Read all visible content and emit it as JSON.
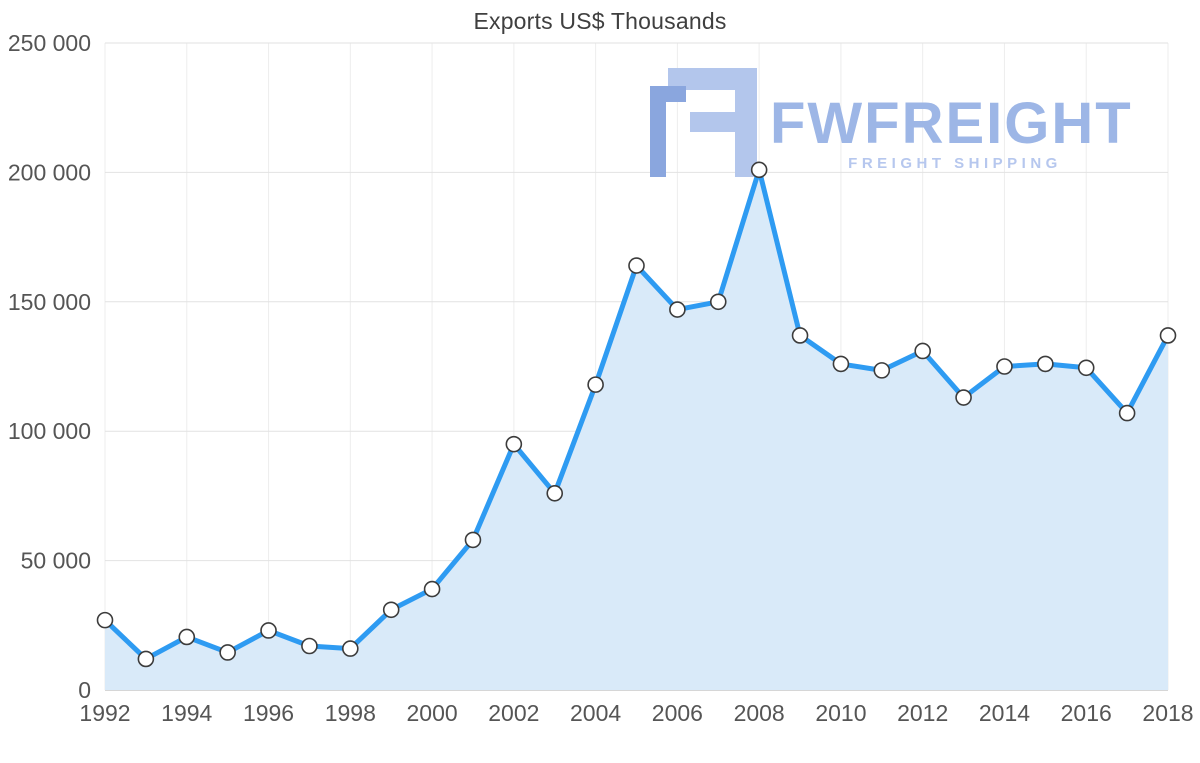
{
  "chart_data": {
    "type": "area",
    "title": "Exports US$ Thousands",
    "xlabel": "",
    "ylabel": "",
    "x": [
      1992,
      1993,
      1994,
      1995,
      1996,
      1997,
      1998,
      1999,
      2000,
      2001,
      2002,
      2003,
      2004,
      2005,
      2006,
      2007,
      2008,
      2009,
      2010,
      2011,
      2012,
      2013,
      2014,
      2015,
      2016,
      2017,
      2018
    ],
    "values": [
      27000,
      12000,
      20500,
      14500,
      23000,
      17000,
      16000,
      31000,
      39000,
      58000,
      95000,
      76000,
      118000,
      164000,
      147000,
      150000,
      201000,
      137000,
      126000,
      123500,
      131000,
      113000,
      125000,
      126000,
      124500,
      107000,
      137000
    ],
    "xticks": [
      1992,
      1994,
      1996,
      1998,
      2000,
      2002,
      2004,
      2006,
      2008,
      2010,
      2012,
      2014,
      2016,
      2018
    ],
    "yticks": [
      0,
      50000,
      100000,
      150000,
      200000,
      250000
    ],
    "ytick_labels": [
      "0",
      "50 000",
      "100 000",
      "150 000",
      "200 000",
      "250 000"
    ],
    "ylim": [
      0,
      250000
    ],
    "grid": true,
    "legend": false,
    "line_color": "#2e9bf2",
    "area_color": "#d9eaf9",
    "marker_fill": "#ffffff",
    "marker_stroke": "#3c3c3c",
    "grid_color_h": "#e2e2e2",
    "grid_color_v": "#ededed",
    "axis_color": "#c8c8c8",
    "tick_color": "#555555"
  },
  "watermark": {
    "brand": "FWFREIGHT",
    "tagline": "FREIGHT SHIPPING",
    "brand_color": "#9db6e6",
    "tagline_color": "#b6c7ee",
    "logo_dark": "#8aa6de",
    "logo_light": "#b3c6ec"
  }
}
